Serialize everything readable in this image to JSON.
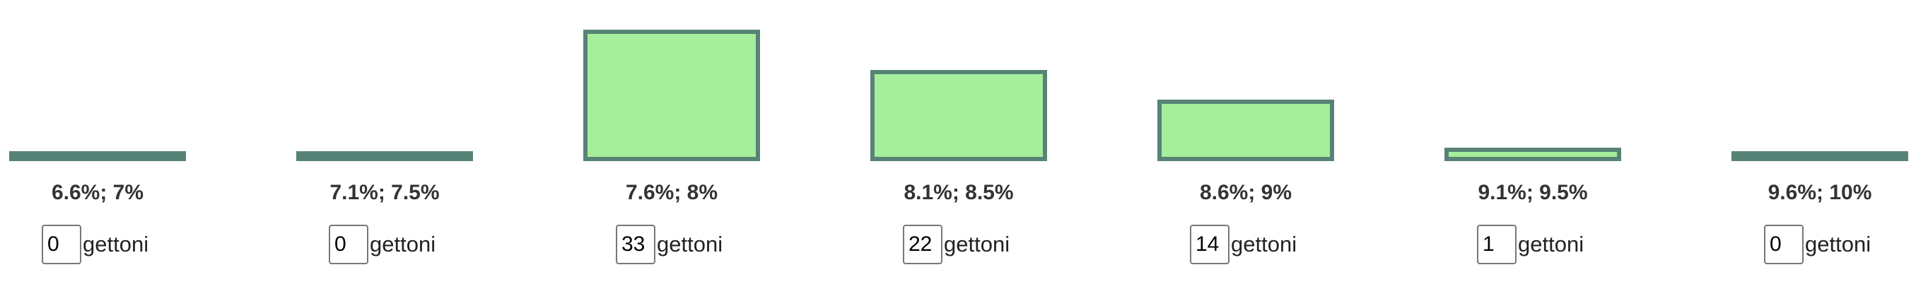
{
  "chart_data": {
    "type": "bar",
    "title": "",
    "xlabel": "",
    "ylabel": "",
    "categories": [
      "6.6%; 7%",
      "7.1%; 7.5%",
      "7.6%; 8%",
      "8.1%; 8.5%",
      "8.6%; 9%",
      "9.1%; 9.5%",
      "9.6%; 10%"
    ],
    "values": [
      0,
      0,
      33,
      22,
      14,
      1,
      0
    ],
    "unit_label": "gettoni",
    "ylim": [
      0,
      33
    ],
    "grid": false,
    "colors": {
      "bar_fill": "#a6ee9b",
      "bar_border": "#578377",
      "label_text": "#333333"
    }
  }
}
